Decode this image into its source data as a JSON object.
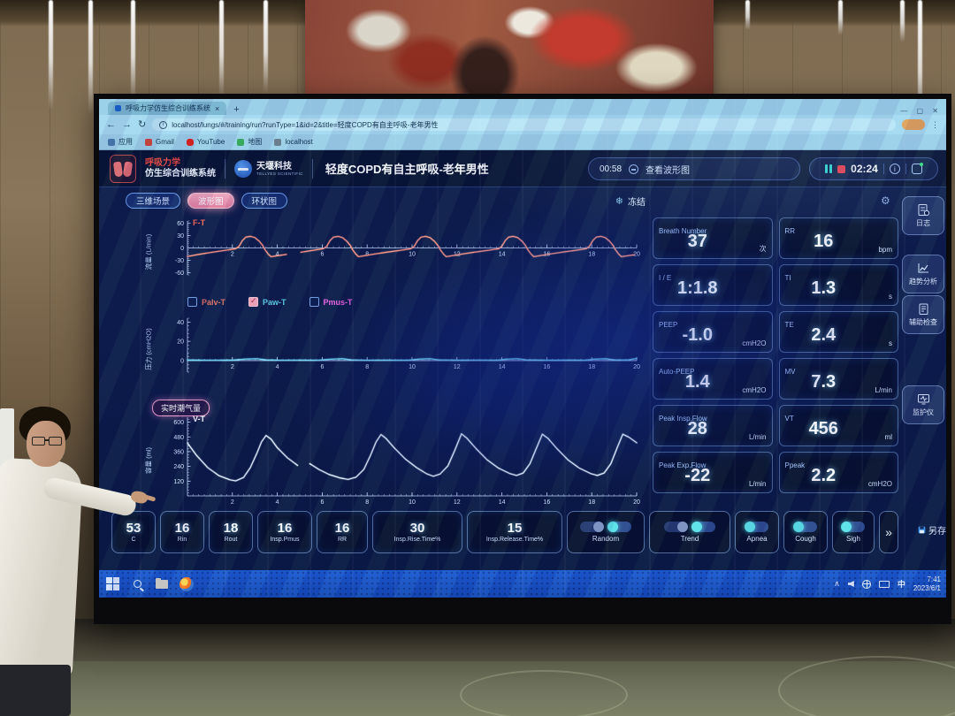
{
  "browser": {
    "tab_title": "呼吸力学仿生综合训练系统",
    "url": "localhost/lungs/#/training/run?runType=1&id=2&title=轻度COPD有自主呼吸-老年男性",
    "bookmarks": [
      {
        "label": "应用"
      },
      {
        "label": "Gmail"
      },
      {
        "label": "YouTube"
      },
      {
        "label": "地图"
      },
      {
        "label": "localhost"
      }
    ]
  },
  "header": {
    "app_title_line1": "呼吸力学",
    "app_title_line2": "仿生综合训练系统",
    "brand": "天堰科技",
    "brand_sub": "TELLYES SCIENTIFIC",
    "case_title": "轻度COPD有自主呼吸-老年男性",
    "elapsed": "00:58",
    "view_label": "查看波形图",
    "countdown": "02:24"
  },
  "view_tabs": [
    {
      "label": "三维场景",
      "active": false
    },
    {
      "label": "波形图",
      "active": true
    },
    {
      "label": "环状图",
      "active": false
    }
  ],
  "freeze_label": "冻结",
  "icons": {
    "freeze": "❄",
    "gear": "⚙",
    "back": "←",
    "forward": "→",
    "reload": "↻",
    "close": "×",
    "new_tab": "+",
    "window_controls": "— ▢ ✕",
    "more": "»",
    "tray_chevron": "∧",
    "nav_dots": "⋮"
  },
  "checkboxes": [
    {
      "label": "Palv-T",
      "checked": false,
      "color": "#e2705f"
    },
    {
      "label": "Paw-T",
      "checked": true,
      "color": "#5fd6e8"
    },
    {
      "label": "Pmus-T",
      "checked": false,
      "color": "#ef5fe0"
    }
  ],
  "realtime_badge": "实时潮气量",
  "parameters": [
    {
      "label": "Breath Number",
      "value": "37",
      "unit": "次"
    },
    {
      "label": "RR",
      "value": "16",
      "unit": "bpm"
    },
    {
      "label": "I / E",
      "value": "1:1.8",
      "unit": ""
    },
    {
      "label": "TI",
      "value": "1.3",
      "unit": "s"
    },
    {
      "label": "PEEP",
      "value": "-1.0",
      "unit": "cmH2O"
    },
    {
      "label": "TE",
      "value": "2.4",
      "unit": "s"
    },
    {
      "label": "Auto-PEEP",
      "value": "1.4",
      "unit": "cmH2O"
    },
    {
      "label": "MV",
      "value": "7.3",
      "unit": "L/min"
    },
    {
      "label": "Peak Insp.Flow",
      "value": "28",
      "unit": "L/min"
    },
    {
      "label": "VT",
      "value": "456",
      "unit": "ml"
    },
    {
      "label": "Peak Exp.Flow",
      "value": "-22",
      "unit": "L/min"
    },
    {
      "label": "Ppeak",
      "value": "2.2",
      "unit": "cmH2O"
    }
  ],
  "bottom_params": [
    {
      "value": "53",
      "label": "C"
    },
    {
      "value": "16",
      "label": "Rin"
    },
    {
      "value": "18",
      "label": "Rout"
    },
    {
      "value": "16",
      "label": "Insp.Pmus"
    },
    {
      "value": "16",
      "label": "RR"
    },
    {
      "value": "30",
      "label": "Insp.Rise.Time%"
    },
    {
      "value": "15",
      "label": "Insp.Release.Time%"
    }
  ],
  "modes": [
    {
      "label": "Random",
      "switches": 2
    },
    {
      "label": "Trend",
      "switches": 2
    },
    {
      "label": "Apnea",
      "switches": 1
    },
    {
      "label": "Cough",
      "switches": 1
    },
    {
      "label": "Sigh",
      "switches": 1
    }
  ],
  "more_label": "»",
  "save_label": "另存",
  "sidebar": [
    {
      "label": "日志"
    },
    {
      "label": "趋势分析"
    },
    {
      "label": "辅助检查"
    },
    {
      "label": "监护仪"
    }
  ],
  "taskbar": {
    "ime": "中",
    "time": "7:41",
    "date": "2023/6/1"
  },
  "chart_data": [
    {
      "id": "ft",
      "type": "line",
      "title": "F-T",
      "title_color": "#ff6a55",
      "ylabel": "流量 (L/min)",
      "xlabel": "",
      "xlim": [
        0,
        20
      ],
      "ylim": [
        -65,
        65
      ],
      "xticks": [
        2,
        4,
        6,
        8,
        10,
        12,
        14,
        16,
        18,
        20
      ],
      "yticks": [
        -60,
        -30,
        0,
        30,
        60
      ],
      "x_minor": 0.25,
      "y_minor": 5,
      "grid": false,
      "series": [
        {
          "name": "Flow",
          "color": "#ff9582",
          "segments": [
            [
              [
                0,
                -20.5
              ],
              [
                0.5,
                -15.5
              ],
              [
                1.1,
                -10.5
              ],
              [
                1.7,
                -5.5
              ],
              [
                2.15,
                -2
              ],
              [
                2.3,
                4
              ],
              [
                2.45,
                18
              ],
              [
                2.6,
                26
              ],
              [
                2.8,
                28
              ],
              [
                3.0,
                25
              ],
              [
                3.2,
                16
              ],
              [
                3.35,
                6
              ],
              [
                3.45,
                -4
              ],
              [
                3.6,
                -15
              ],
              [
                3.72,
                -21
              ],
              [
                4.4,
                -15.5
              ]
            ],
            [
              [
                5.05,
                -10.5
              ],
              [
                5.6,
                -5.5
              ],
              [
                6.05,
                -2
              ],
              [
                6.2,
                4
              ],
              [
                6.35,
                18
              ],
              [
                6.5,
                26
              ],
              [
                6.7,
                28
              ],
              [
                6.9,
                25
              ],
              [
                7.1,
                16
              ],
              [
                7.25,
                6
              ],
              [
                7.35,
                -4
              ],
              [
                7.5,
                -15
              ],
              [
                7.62,
                -21
              ],
              [
                8.3,
                -15
              ],
              [
                8.9,
                -10
              ],
              [
                9.5,
                -5.5
              ],
              [
                9.95,
                -2
              ],
              [
                10.1,
                4
              ],
              [
                10.25,
                18
              ],
              [
                10.4,
                26
              ],
              [
                10.6,
                28
              ],
              [
                10.8,
                25
              ],
              [
                11.0,
                16
              ],
              [
                11.15,
                6
              ],
              [
                11.25,
                -4
              ],
              [
                11.4,
                -15
              ],
              [
                11.52,
                -21
              ],
              [
                12.2,
                -15
              ],
              [
                12.8,
                -10
              ],
              [
                13.4,
                -5.5
              ],
              [
                13.85,
                -2
              ],
              [
                14.0,
                4
              ],
              [
                14.15,
                18
              ],
              [
                14.3,
                26
              ],
              [
                14.5,
                28
              ],
              [
                14.7,
                25
              ],
              [
                14.9,
                16
              ],
              [
                15.05,
                6
              ],
              [
                15.15,
                -4
              ],
              [
                15.3,
                -15
              ],
              [
                15.42,
                -21
              ],
              [
                16.1,
                -15
              ],
              [
                16.7,
                -10
              ],
              [
                17.3,
                -5.5
              ],
              [
                17.75,
                -2
              ],
              [
                17.9,
                4
              ],
              [
                18.05,
                18
              ],
              [
                18.2,
                26
              ],
              [
                18.4,
                28
              ],
              [
                18.6,
                25
              ],
              [
                18.8,
                16
              ],
              [
                18.95,
                6
              ],
              [
                19.05,
                -4
              ],
              [
                19.2,
                -15
              ],
              [
                19.32,
                -21
              ],
              [
                19.9,
                -16.5
              ]
            ]
          ]
        }
      ]
    },
    {
      "id": "paw",
      "type": "line",
      "title": "",
      "title_color": "#ffffff",
      "ylabel": "压力 (cmH2O)",
      "xlabel": "",
      "xlim": [
        0,
        20
      ],
      "ylim": [
        -12,
        44
      ],
      "xticks": [
        2,
        4,
        6,
        8,
        10,
        12,
        14,
        16,
        18,
        20
      ],
      "yticks": [
        0,
        20,
        40
      ],
      "x_minor": 0.25,
      "y_minor": 4,
      "grid": false,
      "series": [
        {
          "name": "Paw-T",
          "color": "#6fd8f5",
          "segments": [
            [
              [
                0,
                0.6
              ],
              [
                1,
                0.4
              ],
              [
                2,
                0.5
              ],
              [
                2.6,
                1.6
              ],
              [
                3.1,
                2.0
              ],
              [
                3.5,
                0.8
              ],
              [
                4.2,
                0.4
              ],
              [
                5,
                0.5
              ],
              [
                5.8,
                0.4
              ],
              [
                6.4,
                1.5
              ],
              [
                6.9,
                2.0
              ],
              [
                7.3,
                0.8
              ],
              [
                8,
                0.4
              ],
              [
                9,
                0.5
              ],
              [
                9.8,
                0.4
              ],
              [
                10.3,
                1.5
              ],
              [
                10.8,
                2.0
              ],
              [
                11.2,
                0.8
              ],
              [
                12,
                0.4
              ],
              [
                13,
                0.5
              ],
              [
                13.8,
                0.4
              ],
              [
                14.2,
                1.5
              ],
              [
                14.7,
                2.0
              ],
              [
                15.1,
                0.8
              ],
              [
                16,
                0.4
              ],
              [
                17,
                0.5
              ],
              [
                17.7,
                0.4
              ],
              [
                18.1,
                1.5
              ],
              [
                18.6,
                2.0
              ],
              [
                19.0,
                0.8
              ],
              [
                19.6,
                0.6
              ],
              [
                20,
                2.2
              ]
            ]
          ]
        }
      ]
    },
    {
      "id": "vt",
      "type": "line",
      "title": "V-T",
      "title_color": "#f2f7ff",
      "ylabel": "容量 (ml)",
      "xlabel": "",
      "xlim": [
        0,
        20
      ],
      "ylim": [
        0,
        640
      ],
      "xticks": [
        2,
        4,
        6,
        8,
        10,
        12,
        14,
        16,
        18,
        20
      ],
      "yticks": [
        120,
        240,
        360,
        480,
        600
      ],
      "x_minor": 0.25,
      "y_minor": 24,
      "grid": false,
      "series": [
        {
          "name": "V-T",
          "color": "#e9f4ff",
          "segments": [
            [
              [
                0,
                430
              ],
              [
                0.4,
                330
              ],
              [
                0.9,
                230
              ],
              [
                1.4,
                165
              ],
              [
                1.9,
                130
              ],
              [
                2.15,
                122
              ],
              [
                2.5,
                150
              ],
              [
                2.8,
                230
              ],
              [
                3.1,
                350
              ],
              [
                3.3,
                440
              ],
              [
                3.5,
                492
              ],
              [
                3.72,
                462
              ],
              [
                4.0,
                392
              ],
              [
                4.45,
                310
              ],
              [
                4.9,
                248
              ]
            ],
            [
              [
                5.45,
                262
              ],
              [
                5.85,
                215
              ],
              [
                6.3,
                175
              ],
              [
                6.8,
                146
              ],
              [
                7.15,
                134
              ],
              [
                7.5,
                152
              ],
              [
                7.85,
                215
              ],
              [
                8.15,
                330
              ],
              [
                8.4,
                440
              ],
              [
                8.62,
                500
              ],
              [
                8.85,
                465
              ],
              [
                9.2,
                392
              ],
              [
                9.7,
                300
              ],
              [
                10.2,
                230
              ],
              [
                10.65,
                180
              ],
              [
                10.95,
                160
              ],
              [
                11.25,
                178
              ],
              [
                11.6,
                245
              ],
              [
                11.9,
                370
              ],
              [
                12.2,
                505
              ],
              [
                12.45,
                468
              ],
              [
                12.85,
                385
              ],
              [
                13.35,
                292
              ],
              [
                13.85,
                226
              ],
              [
                14.35,
                182
              ],
              [
                14.65,
                166
              ],
              [
                14.95,
                186
              ],
              [
                15.25,
                262
              ],
              [
                15.55,
                395
              ],
              [
                15.8,
                502
              ],
              [
                16.05,
                468
              ],
              [
                16.45,
                385
              ],
              [
                16.95,
                292
              ],
              [
                17.45,
                226
              ],
              [
                17.95,
                182
              ],
              [
                18.25,
                166
              ],
              [
                18.55,
                186
              ],
              [
                18.85,
                262
              ],
              [
                19.15,
                400
              ],
              [
                19.38,
                502
              ],
              [
                19.65,
                478
              ],
              [
                20,
                432
              ]
            ]
          ]
        }
      ]
    }
  ]
}
